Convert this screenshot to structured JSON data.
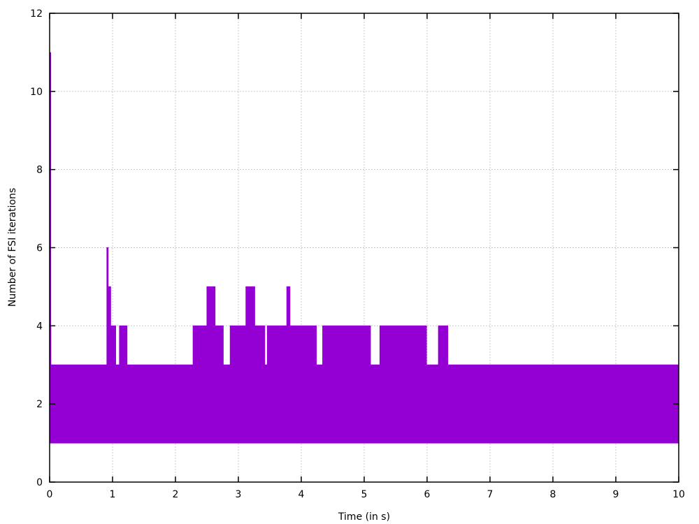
{
  "chart_data": {
    "type": "area",
    "title": "",
    "xlabel": "Time (in s)",
    "ylabel": "Number of FSI iterations",
    "xlim": [
      0,
      10
    ],
    "ylim": [
      0,
      12
    ],
    "xticks": [
      "0",
      "1",
      "2",
      "3",
      "4",
      "5",
      "6",
      "7",
      "8",
      "9",
      "10"
    ],
    "yticks": [
      "0",
      "2",
      "4",
      "6",
      "8",
      "10",
      "12"
    ],
    "grid": true,
    "legend": null,
    "series": [
      {
        "name": "FSI iterations",
        "color": "#9400d3",
        "description": "Rapidly oscillating per-time-step iteration count; drawn as filled band between lower and upper envelope",
        "lower_envelope": 1,
        "initial_spike": {
          "x": 0.0,
          "y": 11
        },
        "upper_envelope": [
          {
            "x_start": 0.0,
            "x_end": 0.02,
            "y": 4
          },
          {
            "x_start": 0.02,
            "x_end": 0.91,
            "y": 3
          },
          {
            "x_start": 0.91,
            "x_end": 0.93,
            "y": 6
          },
          {
            "x_start": 0.93,
            "x_end": 0.97,
            "y": 5
          },
          {
            "x_start": 0.97,
            "x_end": 1.05,
            "y": 4
          },
          {
            "x_start": 1.05,
            "x_end": 1.11,
            "y": 3
          },
          {
            "x_start": 1.11,
            "x_end": 1.23,
            "y": 4
          },
          {
            "x_start": 1.23,
            "x_end": 2.28,
            "y": 3
          },
          {
            "x_start": 2.28,
            "x_end": 2.5,
            "y": 4
          },
          {
            "x_start": 2.5,
            "x_end": 2.63,
            "y": 5
          },
          {
            "x_start": 2.63,
            "x_end": 2.76,
            "y": 4
          },
          {
            "x_start": 2.76,
            "x_end": 2.87,
            "y": 3
          },
          {
            "x_start": 2.87,
            "x_end": 3.12,
            "y": 4
          },
          {
            "x_start": 3.12,
            "x_end": 3.26,
            "y": 5
          },
          {
            "x_start": 3.26,
            "x_end": 3.42,
            "y": 4
          },
          {
            "x_start": 3.42,
            "x_end": 3.46,
            "y": 3
          },
          {
            "x_start": 3.46,
            "x_end": 3.77,
            "y": 4
          },
          {
            "x_start": 3.77,
            "x_end": 3.82,
            "y": 5
          },
          {
            "x_start": 3.82,
            "x_end": 4.24,
            "y": 4
          },
          {
            "x_start": 4.24,
            "x_end": 4.34,
            "y": 3
          },
          {
            "x_start": 4.34,
            "x_end": 5.1,
            "y": 4
          },
          {
            "x_start": 5.1,
            "x_end": 5.25,
            "y": 3
          },
          {
            "x_start": 5.25,
            "x_end": 5.99,
            "y": 4
          },
          {
            "x_start": 5.99,
            "x_end": 6.18,
            "y": 3
          },
          {
            "x_start": 6.18,
            "x_end": 6.33,
            "y": 4
          },
          {
            "x_start": 6.33,
            "x_end": 10.0,
            "y": 3
          }
        ]
      }
    ]
  }
}
